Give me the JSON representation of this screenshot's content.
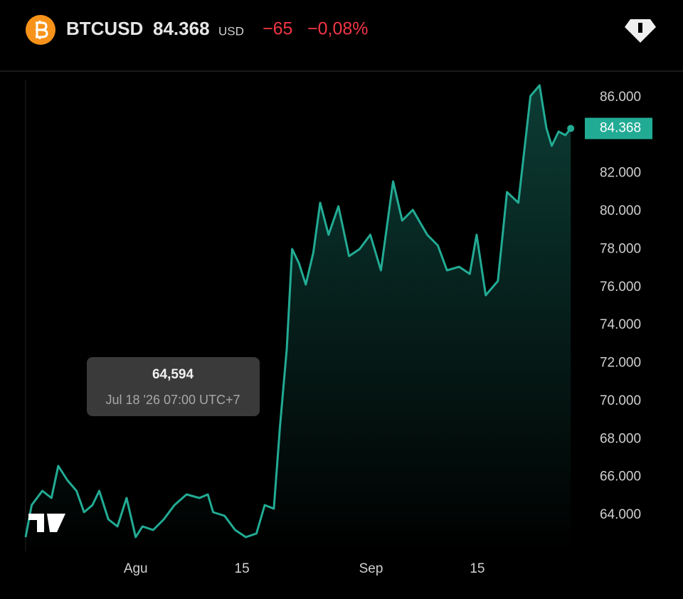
{
  "header": {
    "symbol": "BTCUSD",
    "price": "84.368",
    "currency": "USD",
    "change": "−65",
    "change_pct": "−0,08%"
  },
  "tooltip": {
    "value": "64,594",
    "time": "Jul 18 '26 07:00 UTC+7"
  },
  "chart_data": {
    "type": "line",
    "color": "#22ab94",
    "x": [
      -14.5,
      -13.7,
      -12.3,
      -11.1,
      -10.2,
      -9.0,
      -7.8,
      -6.8,
      -5.7,
      -4.8,
      -3.6,
      -2.4,
      -1.2,
      0.0,
      0.9,
      2.3,
      3.7,
      5.1,
      6.7,
      8.4,
      9.5,
      10.2,
      11.7,
      13.1,
      14.5,
      15.9,
      17.0,
      18.2,
      19.0,
      19.9,
      20.6,
      21.5,
      22.4,
      23.4,
      24.3,
      25.4,
      26.7,
      28.1,
      29.5,
      30.9,
      32.3,
      33.9,
      35.1,
      36.5,
      38.4,
      39.8,
      41.0,
      42.6,
      44.0,
      44.9,
      46.1,
      47.7,
      48.9,
      50.4,
      52.0,
      53.2,
      54.1,
      54.8,
      55.7,
      56.6,
      57.3
    ],
    "values": [
      62837,
      64524,
      65273,
      64899,
      66586,
      65836,
      65273,
      64149,
      64524,
      65273,
      63774,
      63399,
      64899,
      62837,
      63399,
      63212,
      63774,
      64524,
      65086,
      64899,
      65086,
      64149,
      63962,
      63212,
      62837,
      63024,
      64524,
      64337,
      68647,
      72770,
      78017,
      77267,
      76143,
      77829,
      80453,
      78766,
      80265,
      77642,
      78017,
      78766,
      76892,
      81577,
      79516,
      80078,
      78766,
      78204,
      76892,
      77080,
      76705,
      78766,
      75581,
      76330,
      81015,
      80453,
      86075,
      86637,
      84388,
      83451,
      84201,
      84013,
      84368
    ],
    "xlim": [
      -14.5,
      58.5
    ],
    "xticks": [
      {
        "value": 0,
        "label": "Agu"
      },
      {
        "value": 14,
        "label": "15"
      },
      {
        "value": 31,
        "label": "Sep"
      },
      {
        "value": 45,
        "label": "15"
      }
    ],
    "ylim": [
      62088,
      86937
    ],
    "yticks": [
      {
        "value": 64000,
        "label": "64.000"
      },
      {
        "value": 66000,
        "label": "66.000"
      },
      {
        "value": 68000,
        "label": "68.000"
      },
      {
        "value": 70000,
        "label": "70.000"
      },
      {
        "value": 72000,
        "label": "72.000"
      },
      {
        "value": 74000,
        "label": "74.000"
      },
      {
        "value": 76000,
        "label": "76.000"
      },
      {
        "value": 78000,
        "label": "78.000"
      },
      {
        "value": 80000,
        "label": "80.000"
      },
      {
        "value": 82000,
        "label": "82.000"
      },
      {
        "value": 84000,
        "label": "84.000"
      },
      {
        "value": 86000,
        "label": "86.000"
      }
    ]
  }
}
